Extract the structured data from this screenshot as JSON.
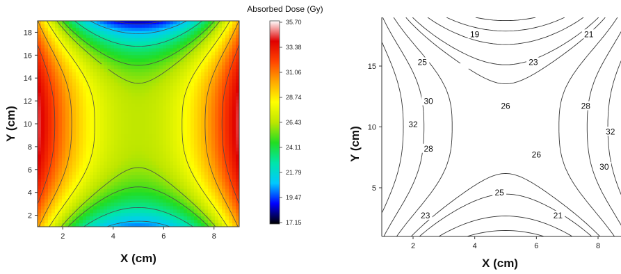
{
  "chart_data": [
    {
      "type": "heatmap",
      "xlabel": "X (cm)",
      "ylabel": "Y (cm)",
      "xlim": [
        1,
        9
      ],
      "ylim": [
        1,
        19
      ],
      "xticks": [
        "2",
        "4",
        "6",
        "8"
      ],
      "yticks": [
        "2",
        "4",
        "6",
        "8",
        "10",
        "12",
        "14",
        "16",
        "18"
      ],
      "colorbar": {
        "title": "Absorbed Dose (Gy)",
        "min": 17.15,
        "max": 35.7,
        "ticks": [
          "35.70",
          "33.38",
          "31.06",
          "28.74",
          "26.43",
          "24.11",
          "21.79",
          "19.47",
          "17.15"
        ],
        "colors": [
          "#000000",
          "#0000ff",
          "#00c8ff",
          "#00e5aa",
          "#22dd22",
          "#bde600",
          "#ffff00",
          "#ffa800",
          "#ff4400",
          "#e00000",
          "#ffffff"
        ]
      },
      "model": {
        "center": 26.5,
        "center_y": 10,
        "x_center": 5,
        "edge_gain": 8.0,
        "top_dip": 8.2,
        "bottom_dip": 6.5
      }
    },
    {
      "type": "contour",
      "xlabel": "X (cm)",
      "ylabel": "Y (cm)",
      "xlim": [
        1,
        9
      ],
      "ylim": [
        1,
        19
      ],
      "xticks": [
        "2",
        "4",
        "6",
        "8"
      ],
      "yticks": [
        "5",
        "10",
        "15"
      ],
      "levels": [
        19,
        21,
        23,
        25,
        26,
        28,
        30,
        32
      ],
      "contour_labels": [
        "19",
        "21",
        "25",
        "23",
        "30",
        "26",
        "28",
        "32",
        "32",
        "28",
        "26",
        "30",
        "25",
        "23",
        "21"
      ]
    }
  ]
}
